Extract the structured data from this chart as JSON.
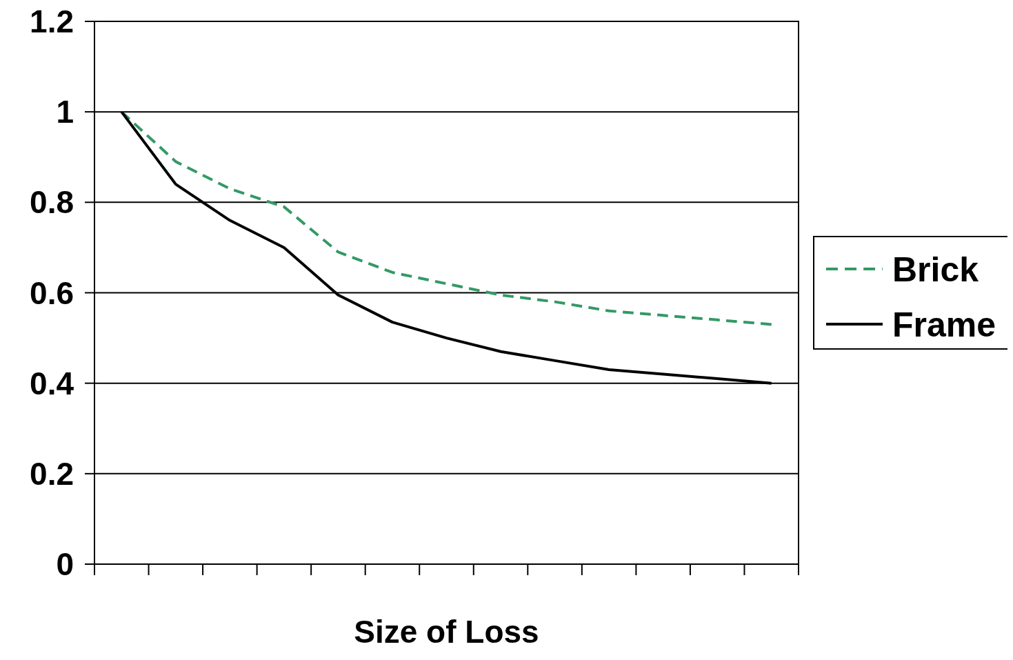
{
  "chart_data": {
    "type": "line",
    "xlabel": "Size of Loss",
    "categories": [
      null,
      null,
      null,
      null,
      null,
      null,
      null,
      null,
      null,
      null,
      null,
      null,
      null
    ],
    "series": [
      {
        "name": "Brick",
        "color": "#339966",
        "line_style": "dashed",
        "values": [
          1.0,
          0.89,
          0.83,
          0.79,
          0.69,
          0.645,
          0.62,
          0.595,
          0.58,
          0.56,
          0.55,
          0.54,
          0.53
        ]
      },
      {
        "name": "Frame",
        "color": "#000000",
        "line_style": "solid",
        "values": [
          1.0,
          0.84,
          0.76,
          0.7,
          0.595,
          0.535,
          0.5,
          0.47,
          0.45,
          0.43,
          0.42,
          0.41,
          0.4
        ]
      }
    ],
    "ylim": [
      0,
      1.2
    ],
    "yticks": [
      0,
      0.2,
      0.4,
      0.6,
      0.8,
      1,
      1.2
    ],
    "grid": "y",
    "legend": "right"
  }
}
